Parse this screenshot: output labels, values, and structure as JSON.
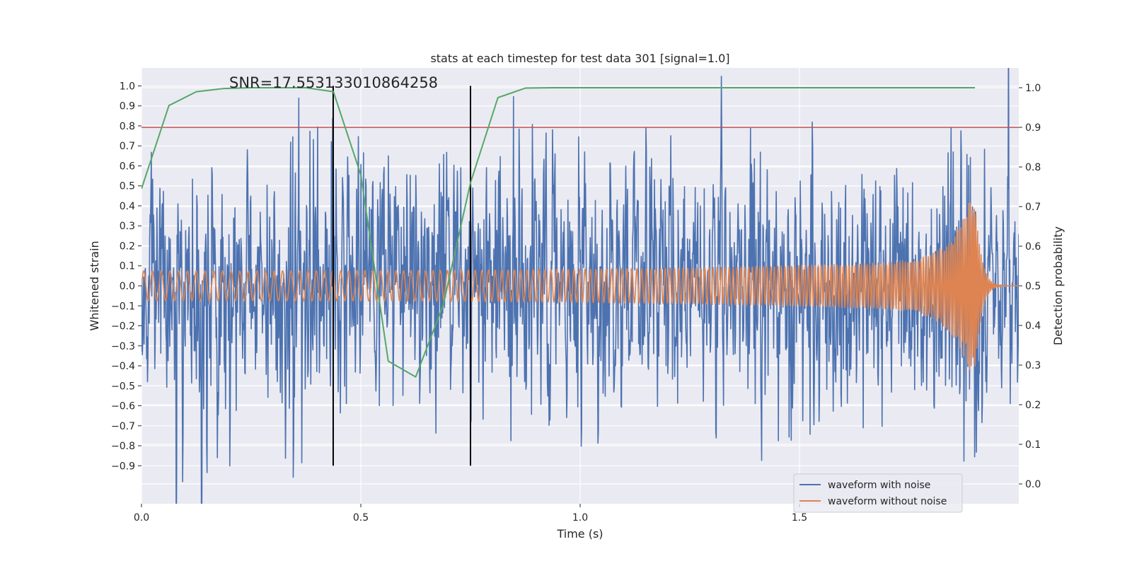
{
  "chart_data": {
    "type": "line",
    "title": "stats at each timestep for test data 301 [signal=1.0]",
    "xlabel": "Time (s)",
    "ylabel": "Whitened strain",
    "y2label": "Detection probability",
    "xlim": [
      0.0,
      2.0
    ],
    "ylim": [
      -1.09,
      1.09
    ],
    "y2lim": [
      -0.05,
      1.05
    ],
    "xticks": [
      0.0,
      0.5,
      1.0,
      1.5
    ],
    "xtick_labels": [
      "0.0",
      "0.5",
      "1.0",
      "1.5"
    ],
    "yticks": [
      1.0,
      0.9,
      0.8,
      0.7,
      0.6,
      0.5,
      0.4,
      0.3,
      0.2,
      0.1,
      0.0,
      -0.1,
      -0.2,
      -0.3,
      -0.4,
      -0.5,
      -0.6,
      -0.7,
      -0.8,
      -0.9
    ],
    "ytick_labels": [
      "1.0",
      "0.9",
      "0.8",
      "0.7",
      "0.6",
      "0.5",
      "0.4",
      "0.3",
      "0.2",
      "0.1",
      "0.0",
      "−0.1",
      "−0.2",
      "−0.3",
      "−0.4",
      "−0.5",
      "−0.6",
      "−0.7",
      "−0.8",
      "−0.9"
    ],
    "y2ticks": [
      1.0,
      0.9,
      0.8,
      0.7,
      0.6,
      0.5,
      0.4,
      0.3,
      0.2,
      0.1,
      0.0
    ],
    "y2tick_labels": [
      "1.0",
      "0.9",
      "0.8",
      "0.7",
      "0.6",
      "0.5",
      "0.4",
      "0.3",
      "0.2",
      "0.1",
      "0.0"
    ],
    "annotation": "SNR=17.553133010864258",
    "annotation_at": [
      0.2,
      1.04
    ],
    "threshold": {
      "axis": "right",
      "value": 0.9,
      "color": "#c44e52"
    },
    "vlines": [
      {
        "x": 0.437,
        "ymin": -0.9,
        "ymax": 1.0,
        "color": "#000000"
      },
      {
        "x": 0.75,
        "ymin": -0.9,
        "ymax": 1.0,
        "color": "#000000"
      }
    ],
    "series": [
      {
        "name": "waveform with noise",
        "axis": "left",
        "color": "#4c72b0",
        "kind": "noisy_strain",
        "t_start": 0.0,
        "t_end": 2.0,
        "samples": 2048,
        "sigma": 0.29,
        "merger_time": 1.9
      },
      {
        "name": "waveform without noise",
        "axis": "left",
        "color": "#dd8452",
        "kind": "chirp",
        "t_start": 0.0,
        "t_end": 2.0,
        "samples": 2048,
        "merger_time": 1.9,
        "amplitude_start": 0.075,
        "amplitude_peak": 0.52,
        "frequency_start": 50,
        "frequency_at_1_7s": 160
      },
      {
        "name": "detection probability",
        "axis": "right",
        "color": "#55a868",
        "x": [
          0.0,
          0.0625,
          0.125,
          0.1875,
          0.25,
          0.3125,
          0.375,
          0.4375,
          0.5,
          0.5625,
          0.625,
          0.6875,
          0.75,
          0.8125,
          0.875,
          0.9375,
          1.0,
          1.25,
          1.5,
          1.75,
          1.9
        ],
        "values": [
          0.745,
          0.955,
          0.99,
          0.998,
          1.0,
          1.0,
          1.0,
          0.99,
          0.78,
          0.31,
          0.27,
          0.45,
          0.76,
          0.975,
          0.999,
          1.0,
          1.0,
          1.0,
          1.0,
          1.0,
          1.0
        ]
      }
    ],
    "legend": {
      "placement": "lower-right",
      "entries": [
        {
          "label": "waveform with noise",
          "color": "#4c72b0"
        },
        {
          "label": "waveform without noise",
          "color": "#dd8452"
        }
      ]
    }
  }
}
